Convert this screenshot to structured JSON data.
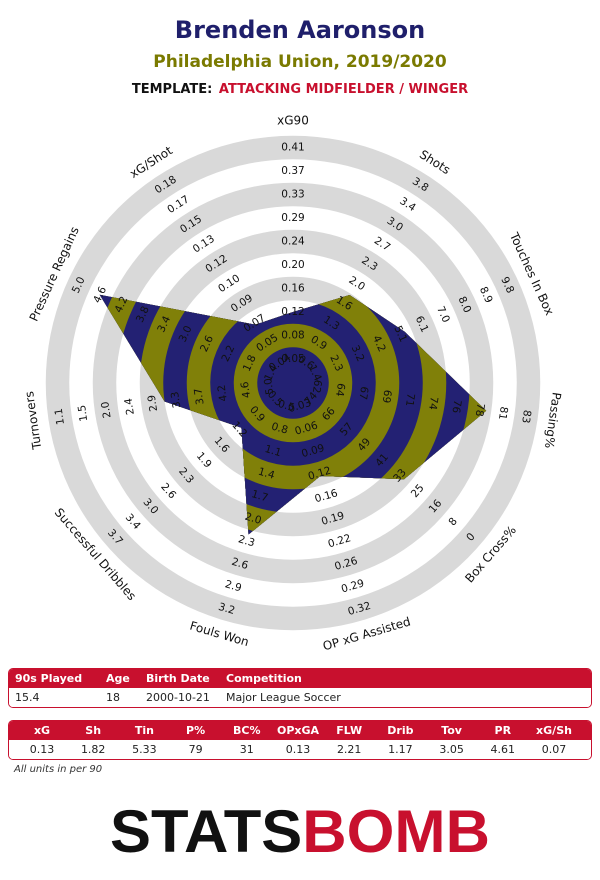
{
  "header": {
    "title": "Brenden Aaronson",
    "subtitle": "Philadelphia Union, 2019/2020",
    "template_label": "TEMPLATE:",
    "template": "ATTACKING MIDFIELDER / WINGER"
  },
  "chart_data": {
    "type": "radar",
    "axes": [
      {
        "name": "xG90",
        "ticks": [
          0.05,
          0.08,
          0.12,
          0.16,
          {
            "value": 0.2,
            "label": "0.20"
          },
          0.24,
          0.29,
          0.33,
          0.37,
          0.41
        ]
      },
      {
        "name": "Shots",
        "ticks": [
          0.6,
          0.9,
          1.3,
          1.6,
          {
            "value": 2,
            "label": "2.0"
          },
          2.3,
          2.7,
          {
            "value": 3,
            "label": "3.0"
          },
          3.4,
          3.8
        ]
      },
      {
        "name": "Touches In Box",
        "ticks": [
          1.4,
          2.3,
          3.2,
          4.2,
          5.1,
          6.1,
          {
            "value": 7,
            "label": "7.0"
          },
          {
            "value": 8,
            "label": "8.0"
          },
          8.9,
          9.8
        ]
      },
      {
        "name": "Passing%",
        "ticks": [
          62,
          64,
          67,
          69,
          71,
          74,
          76,
          78,
          81,
          83
        ]
      },
      {
        "name": "Box Cross%",
        "ticks": [
          74,
          66,
          57,
          49,
          41,
          33,
          25,
          16,
          8,
          0
        ]
      },
      {
        "name": "OP xG Assisted",
        "ticks": [
          0.03,
          0.06,
          0.09,
          0.12,
          0.16,
          0.19,
          0.22,
          0.26,
          0.29,
          0.32
        ]
      },
      {
        "name": "Fouls Won",
        "ticks": [
          0.5,
          0.8,
          1.1,
          1.4,
          1.7,
          {
            "value": 2,
            "label": "2.0"
          },
          2.3,
          2.6,
          2.9,
          3.2
        ]
      },
      {
        "name": "Successful Dribbles",
        "ticks": [
          0.5,
          0.9,
          1.2,
          1.6,
          1.9,
          2.3,
          2.6,
          {
            "value": 3,
            "label": "3.0"
          },
          3.4,
          3.7
        ]
      },
      {
        "name": "Turnovers",
        "ticks": [
          {
            "value": 5,
            "label": "5.0"
          },
          4.6,
          4.2,
          3.7,
          3.3,
          2.9,
          2.4,
          {
            "value": 2,
            "label": "2.0"
          },
          1.5,
          1.1
        ]
      },
      {
        "name": "Pressure Regains",
        "ticks": [
          1.4,
          1.8,
          2.2,
          2.6,
          {
            "value": 3,
            "label": "3.0"
          },
          3.4,
          3.8,
          4.2,
          4.6,
          {
            "value": 5,
            "label": "5.0"
          }
        ]
      },
      {
        "name": "xG/Shot",
        "ticks": [
          0.04,
          0.05,
          0.07,
          0.09,
          {
            "value": 0.1,
            "label": "0.10"
          },
          0.12,
          0.13,
          0.15,
          0.17,
          0.18
        ]
      }
    ],
    "values": [
      0.13,
      1.82,
      5.33,
      79,
      31,
      0.13,
      2.21,
      1.17,
      3.05,
      4.61,
      0.07
    ],
    "colors": [
      "#232173",
      "#808009"
    ],
    "grid_colors": [
      "#d9d9d9",
      "#ffffff"
    ]
  },
  "info_table": {
    "header": [
      "90s Played",
      "Age",
      "Birth Date",
      "Competition"
    ],
    "rows": [
      [
        "15.4",
        "18",
        "2000-10-21",
        "Major League Soccer"
      ]
    ]
  },
  "stats_table": {
    "header": [
      "xG",
      "Sh",
      "Tin",
      "P%",
      "BC%",
      "OPxGA",
      "FLW",
      "Drib",
      "Tov",
      "PR",
      "xG/Sh"
    ],
    "rows": [
      [
        "0.13",
        "1.82",
        "5.33",
        "79",
        "31",
        "0.13",
        "2.21",
        "1.17",
        "3.05",
        "4.61",
        "0.07"
      ]
    ]
  },
  "footnote": "All units in per 90",
  "logo": {
    "part1": "STATS",
    "part2": "BOMB"
  }
}
